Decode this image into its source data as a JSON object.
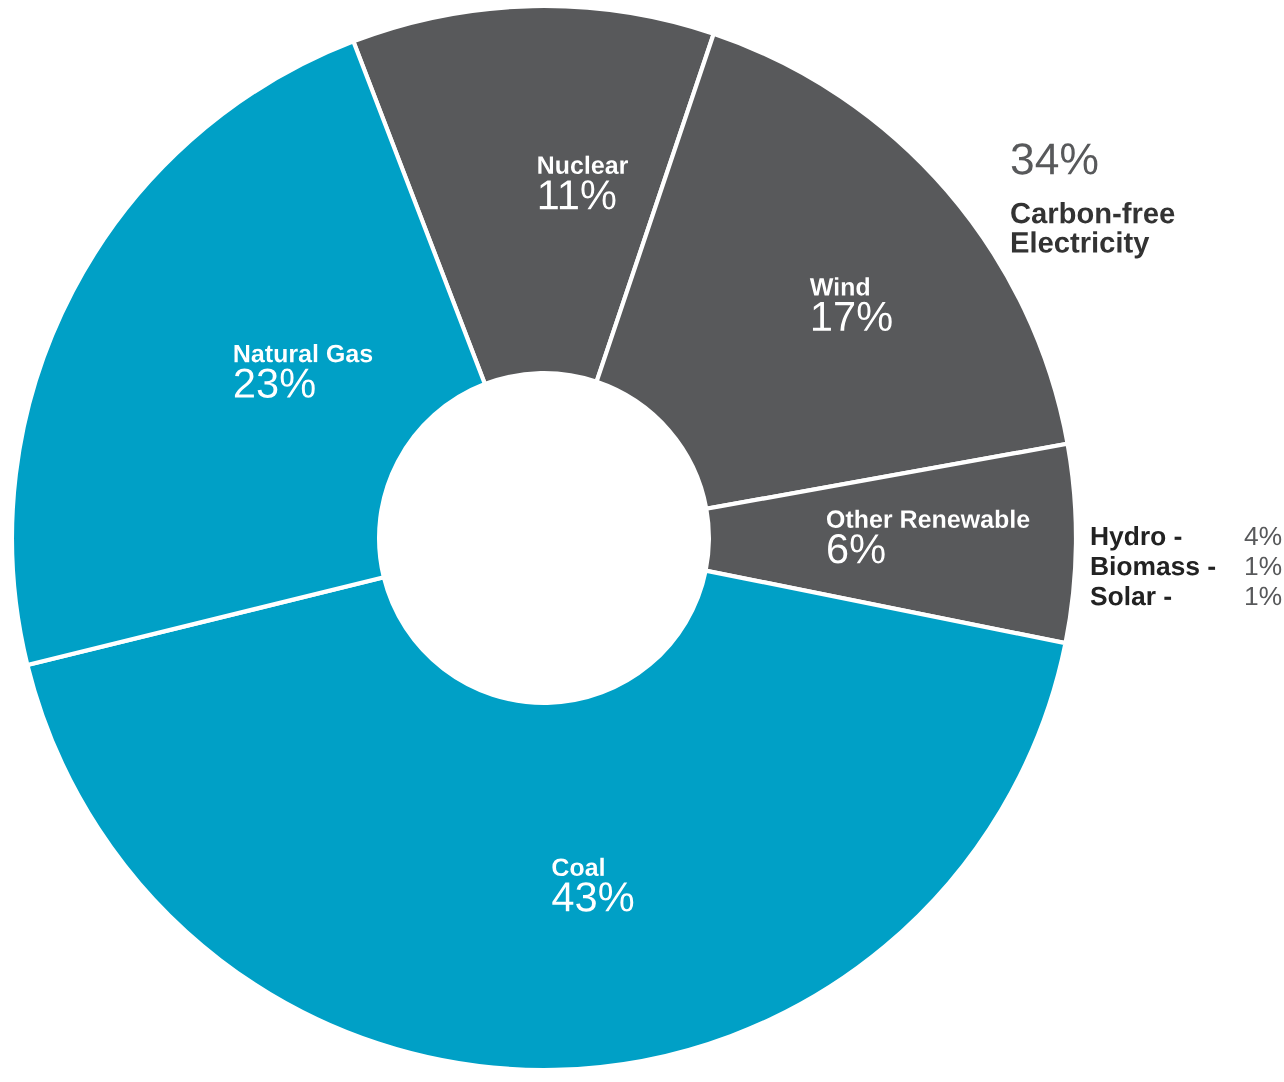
{
  "chart_data": {
    "type": "donut",
    "categories": [
      "Nuclear",
      "Wind",
      "Other Renewable",
      "Coal",
      "Natural Gas"
    ],
    "values": [
      11,
      17,
      6,
      43,
      23
    ],
    "value_labels": [
      "11%",
      "17%",
      "6%",
      "43%",
      "23%"
    ],
    "colors": [
      "#58595b",
      "#58595b",
      "#58595b",
      "#00a0c6",
      "#00a0c6"
    ],
    "legend": false,
    "annotations": [
      "34%",
      "Carbon-free\nElectricity",
      "Hydro -",
      "4%",
      "Biomass -",
      "1%",
      "Solar -",
      "1%"
    ]
  }
}
